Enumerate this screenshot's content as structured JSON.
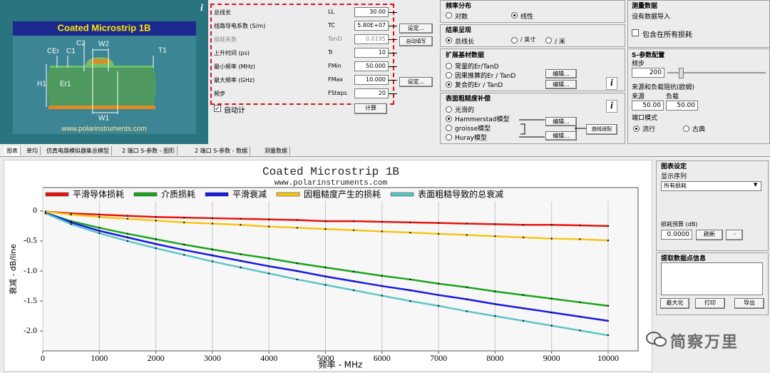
{
  "diagram": {
    "title": "Coated Microstrip 1B",
    "labels": [
      "CEr",
      "C1",
      "C2",
      "W2",
      "T1",
      "H1",
      "Er1",
      "W1"
    ],
    "url": "www.polarinstruments.com",
    "info_icon": "i"
  },
  "parameters": {
    "rows": [
      {
        "label": "总线长",
        "symbol": "LL",
        "value": "30.00"
      },
      {
        "label": "线路导电系数 (S/m)",
        "symbol": "TC",
        "value": "5.80E+07"
      },
      {
        "label": "损耗系数",
        "symbol": "TanD",
        "value": "0.0195"
      },
      {
        "label": "上升时间 (ps)",
        "symbol": "Tr",
        "value": "10"
      },
      {
        "label": "最小频率 (MHz)",
        "symbol": "FMin",
        "value": "50.000"
      },
      {
        "label": "最大频率 (GHz)",
        "symbol": "FMax",
        "value": "10.000"
      },
      {
        "label": "频步",
        "symbol": "FSteps",
        "value": "20"
      }
    ],
    "set_button": "设定...",
    "autofill_button": "自动填写",
    "auto_calc": "自动计",
    "calc_button": "计算"
  },
  "freq_dist": {
    "title": "频率分布",
    "options": [
      "对数",
      "线性"
    ]
  },
  "result": {
    "title": "结果呈现",
    "options": [
      "总线长",
      "/ 英寸",
      "/ 米"
    ]
  },
  "substrate": {
    "title": "扩展基材数据",
    "options": [
      "常量的Er/TanD",
      "因果推算的Er / TanD",
      "复合的Er / TanD"
    ],
    "edit_button": "编辑...",
    "info_icon": "i"
  },
  "roughness": {
    "title": "表面粗糙度补偿",
    "options": [
      "光滑的",
      "Hammerstad模型",
      "groisse模型",
      "Huray模型"
    ],
    "edit_button": "编辑...",
    "fit_button": "曲线适配",
    "info_icon": "i"
  },
  "measured": {
    "title": "测量数据",
    "status": "设有数据导入",
    "include": "包含在所有损耗"
  },
  "sparam": {
    "title": "S-参数配置",
    "step_label": "频步",
    "step": "200",
    "impedance_label": "来源和负载阻抗(欧姆)",
    "source_label": "来源",
    "load_label": "负载",
    "source": "50.00",
    "load": "50.00",
    "port_mode": "端口模式",
    "modes": [
      "流行",
      "古典"
    ]
  },
  "tabs": [
    "图表",
    "单均",
    "仿真电路模拟器集总模型",
    "2 端口 S-参数 - 图形",
    "2 端口 S-参数 - 数据",
    "测量数据"
  ],
  "chart_settings": {
    "title": "图表设定",
    "series_label": "显示序列",
    "series_value": "所有损耗",
    "budget_label": "损耗预算 (dB)",
    "budget_value": "0.0000",
    "refresh_button": "刷新",
    "more_button": "··",
    "extract_title": "提取数据点信息",
    "maximize_button": "最大化",
    "print_button": "打印",
    "export_button": "导出"
  },
  "watermark": "简察万里",
  "chart_data": {
    "type": "line",
    "title": "Coated Microstrip 1B",
    "subtitle": "www.polarinstruments.com",
    "xlabel": "频率 - MHz",
    "ylabel": "衰减 - dB/line",
    "x": [
      50,
      500,
      1000,
      1500,
      2000,
      2500,
      3000,
      3500,
      4000,
      4500,
      5000,
      5500,
      6000,
      6500,
      7000,
      7500,
      8000,
      8500,
      9000,
      9500,
      10000
    ],
    "series": [
      {
        "name": "平滑导体损耗",
        "color": "#e8150f",
        "values": [
          -0.01,
          -0.04,
          -0.06,
          -0.08,
          -0.1,
          -0.11,
          -0.12,
          -0.13,
          -0.14,
          -0.15,
          -0.17,
          -0.17,
          -0.18,
          -0.19,
          -0.2,
          -0.21,
          -0.22,
          -0.23,
          -0.23,
          -0.24,
          -0.25
        ]
      },
      {
        "name": "介质损耗",
        "color": "#1aa51a",
        "values": [
          -0.03,
          -0.17,
          -0.28,
          -0.38,
          -0.47,
          -0.56,
          -0.64,
          -0.72,
          -0.79,
          -0.87,
          -0.94,
          -1.01,
          -1.08,
          -1.14,
          -1.21,
          -1.27,
          -1.34,
          -1.4,
          -1.46,
          -1.52,
          -1.58
        ]
      },
      {
        "name": "平滑衰减",
        "color": "#1a1ae6",
        "values": [
          -0.03,
          -0.19,
          -0.33,
          -0.44,
          -0.55,
          -0.65,
          -0.74,
          -0.83,
          -0.92,
          -1.0,
          -1.09,
          -1.17,
          -1.25,
          -1.32,
          -1.4,
          -1.47,
          -1.55,
          -1.62,
          -1.69,
          -1.76,
          -1.83
        ]
      },
      {
        "name": "因粗糙度产生的损耗",
        "color": "#f5c518",
        "values": [
          -0.01,
          -0.06,
          -0.1,
          -0.13,
          -0.16,
          -0.19,
          -0.21,
          -0.23,
          -0.26,
          -0.28,
          -0.3,
          -0.32,
          -0.34,
          -0.36,
          -0.38,
          -0.4,
          -0.42,
          -0.44,
          -0.46,
          -0.47,
          -0.49
        ]
      },
      {
        "name": "表面粗糙导致的总衰减",
        "color": "#5cc6c6",
        "values": [
          -0.04,
          -0.22,
          -0.37,
          -0.5,
          -0.62,
          -0.73,
          -0.84,
          -0.94,
          -1.04,
          -1.14,
          -1.23,
          -1.32,
          -1.41,
          -1.5,
          -1.58,
          -1.67,
          -1.75,
          -1.83,
          -1.91,
          -1.99,
          -2.07
        ]
      }
    ],
    "xlim": [
      0,
      10530
    ],
    "ylim": [
      -2.33,
      0.39
    ],
    "xticks": [
      0,
      1000,
      2000,
      3000,
      4000,
      5000,
      6000,
      7000,
      8000,
      9000,
      10000
    ],
    "yticks": [
      0,
      -0.5,
      {
        "value": -1,
        "label": "-1.0"
      },
      -1.5,
      {
        "value": -2,
        "label": "-2.0"
      }
    ],
    "grid": true,
    "legend": "top"
  }
}
